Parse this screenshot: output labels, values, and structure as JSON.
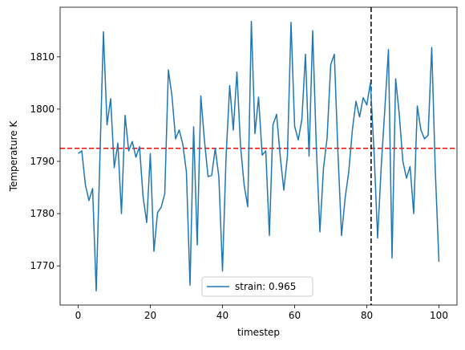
{
  "chart_data": {
    "type": "line",
    "title": "",
    "xlabel": "timestep",
    "ylabel": "Temperature K",
    "xlim": [
      -5,
      105
    ],
    "ylim": [
      1762.5,
      1819.5
    ],
    "xticks": [
      0,
      20,
      40,
      60,
      80,
      100
    ],
    "yticks": [
      1770,
      1780,
      1790,
      1800,
      1810
    ],
    "grid": false,
    "legend_position": "lower-center",
    "series": [
      {
        "name": "strain: 0.965",
        "color": "#1f77b4",
        "x": [
          0,
          1,
          2,
          3,
          4,
          5,
          6,
          7,
          8,
          9,
          10,
          11,
          12,
          13,
          14,
          15,
          16,
          17,
          18,
          19,
          20,
          21,
          22,
          23,
          24,
          25,
          26,
          27,
          28,
          29,
          30,
          31,
          32,
          33,
          34,
          35,
          36,
          37,
          38,
          39,
          40,
          41,
          42,
          43,
          44,
          45,
          46,
          47,
          48,
          49,
          50,
          51,
          52,
          53,
          54,
          55,
          56,
          57,
          58,
          59,
          60,
          61,
          62,
          63,
          64,
          65,
          66,
          67,
          68,
          69,
          70,
          71,
          72,
          73,
          74,
          75,
          76,
          77,
          78,
          79,
          80,
          81,
          82,
          83,
          84,
          85,
          86,
          87,
          88,
          89,
          90,
          91,
          92,
          93,
          94,
          95,
          96,
          97,
          98,
          99,
          100
        ],
        "values": [
          1791.5,
          1792,
          1785.5,
          1782.5,
          1784.8,
          1765.2,
          1790,
          1814.8,
          1797,
          1802,
          1788.8,
          1793.5,
          1780,
          1798.8,
          1792,
          1793.8,
          1790.8,
          1792.8,
          1783.2,
          1778.3,
          1791.5,
          1772.8,
          1780.2,
          1781.2,
          1783.8,
          1807.5,
          1802.5,
          1794.3,
          1796,
          1793.3,
          1788,
          1766.3,
          1796.6,
          1774,
          1802.5,
          1794,
          1787.1,
          1787.3,
          1792.5,
          1787,
          1769,
          1791,
          1804.5,
          1796,
          1807.1,
          1793,
          1785.5,
          1781.3,
          1816.8,
          1795.3,
          1802.3,
          1791.2,
          1792,
          1775.8,
          1797,
          1799,
          1791,
          1784.5,
          1791,
          1816.6,
          1796.7,
          1794.1,
          1798,
          1810.5,
          1791,
          1815,
          1793,
          1776.5,
          1788.7,
          1794.5,
          1808.5,
          1810.5,
          1791.8,
          1775.8,
          1783,
          1788,
          1796,
          1801.5,
          1798.5,
          1802.2,
          1800.8,
          1805,
          1792,
          1775.3,
          1789,
          1800,
          1811.4,
          1771.5,
          1805.8,
          1799,
          1790,
          1786.8,
          1789,
          1780,
          1800.6,
          1796,
          1794.3,
          1795,
          1811.8,
          1788,
          1770.8
        ]
      }
    ],
    "reference_lines": [
      {
        "orientation": "horizontal",
        "value": 1792.5,
        "color": "#ff0000",
        "style": "dashed"
      },
      {
        "orientation": "vertical",
        "value": 81.2,
        "color": "#000000",
        "style": "dashed"
      }
    ]
  }
}
